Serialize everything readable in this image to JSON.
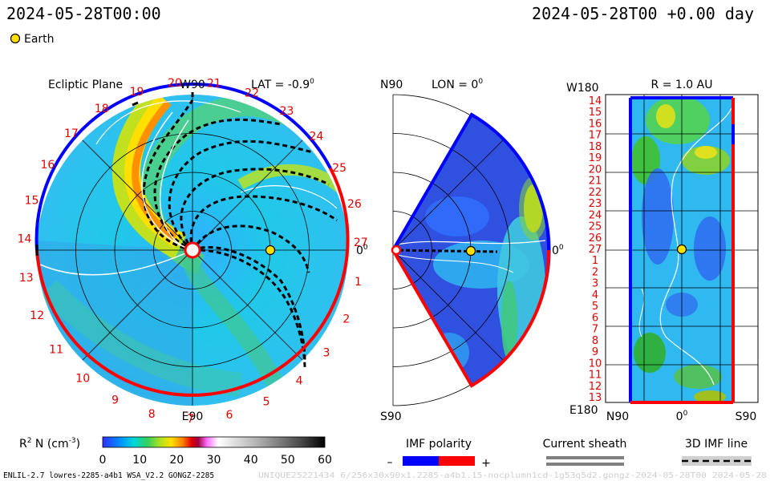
{
  "header": {
    "left_timestamp": "2024-05-28T00:00",
    "right_timestamp": "2024-05-28T00 +0.00 day",
    "legend_earth": "Earth"
  },
  "panels": {
    "ecliptic": {
      "title": "Ecliptic Plane",
      "lat_label": "LAT = -0.9",
      "deg": "0",
      "top_label": "W90",
      "bottom_label": "E90",
      "right_label": "0",
      "right_deg": "0",
      "sector_labels": [
        "20",
        "21",
        "22",
        "23",
        "24",
        "25",
        "26",
        "27",
        "1",
        "2",
        "3",
        "4",
        "5",
        "6",
        "7",
        "8",
        "9",
        "10",
        "11",
        "12",
        "13",
        "14",
        "15",
        "16",
        "17",
        "18",
        "19"
      ]
    },
    "meridional": {
      "top_left": "N90",
      "lon_label": "LON = 0",
      "deg": "0",
      "bottom_left": "S90",
      "right_label": "0",
      "right_deg": "0"
    },
    "radial": {
      "top_left": "W180",
      "r_label": "R = 1.0 AU",
      "bottom_left": "E180",
      "x_labels": [
        "N90",
        "0",
        "S90"
      ],
      "x_deg": "0",
      "y_labels": [
        "14",
        "15",
        "16",
        "17",
        "18",
        "19",
        "20",
        "21",
        "22",
        "23",
        "24",
        "25",
        "26",
        "27",
        "1",
        "2",
        "3",
        "4",
        "5",
        "6",
        "7",
        "8",
        "9",
        "10",
        "11",
        "12",
        "13"
      ]
    }
  },
  "colorbar": {
    "label_main": "R",
    "label_sup": "2",
    "label_rest": " N (cm",
    "label_exp": "-3",
    "label_close": ")",
    "ticks": [
      "0",
      "10",
      "20",
      "30",
      "40",
      "50",
      "60"
    ],
    "range": [
      0,
      60
    ],
    "colors": [
      "#2a2aff",
      "#0090ff",
      "#00d8d8",
      "#30d080",
      "#b0e020",
      "#ffe000",
      "#ff8000",
      "#e00000",
      "#a00040",
      "#ff70ff",
      "#ffffff",
      "#c0c0c0",
      "#808080",
      "#202020"
    ]
  },
  "legend": {
    "imf_title": "IMF polarity",
    "imf_minus": "–",
    "imf_plus": "+",
    "imf_neg_color": "#0000ff",
    "imf_pos_color": "#ff0000",
    "sheath_title": "Current sheath",
    "imf_line_title": "3D IMF line"
  },
  "footer": {
    "left": "ENLIL-2.7 lowres-2285-a4b1 WSA_V2.2 GONGZ-2285",
    "right": "UNIQUE25221434 6/256x30x90x1.2285-a4b1.15-nocplumn1cd-1g53q5d2.gongz-2024-05-28T00    2024-05-28"
  }
}
